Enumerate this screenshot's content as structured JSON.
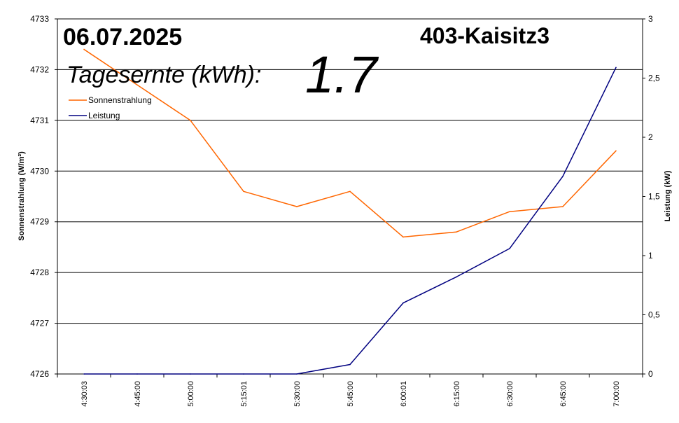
{
  "header": {
    "date": "06.07.2025",
    "station": "403-Kaisitz3",
    "yield_label": "Tagesernte (kWh):",
    "yield_value": "1.7"
  },
  "chart_data": {
    "type": "line",
    "categories": [
      "4:30:03",
      "4:45:00",
      "5:00:00",
      "5:15:01",
      "5:30:00",
      "5:45:00",
      "6:00:01",
      "6:15:00",
      "6:30:00",
      "6:45:00",
      "7:00:00"
    ],
    "ylabel": "Sonnenstrahlung (W/m²)",
    "y2label": "Leistung (kW)",
    "ylim": [
      4726,
      4733
    ],
    "y2lim": [
      0,
      3
    ],
    "yticks": [
      "4726",
      "4727",
      "4728",
      "4729",
      "4730",
      "4731",
      "4732",
      "4733"
    ],
    "y2ticks": [
      "0",
      "0,5",
      "1",
      "1,5",
      "2",
      "2,5",
      "3"
    ],
    "grid": true,
    "legend_position": "top-left",
    "series": [
      {
        "name": "Sonnenstrahlung",
        "axis": "left",
        "color": "#ff6600",
        "values": [
          4732.4,
          4731.7,
          4731.0,
          4729.6,
          4729.3,
          4729.6,
          4728.7,
          4728.8,
          4729.2,
          4729.3,
          4730.4
        ]
      },
      {
        "name": "Leistung",
        "axis": "right",
        "color": "#000080",
        "values": [
          0,
          0,
          0,
          0,
          0,
          0.08,
          0.6,
          0.82,
          1.06,
          1.67,
          2.59
        ]
      }
    ]
  }
}
